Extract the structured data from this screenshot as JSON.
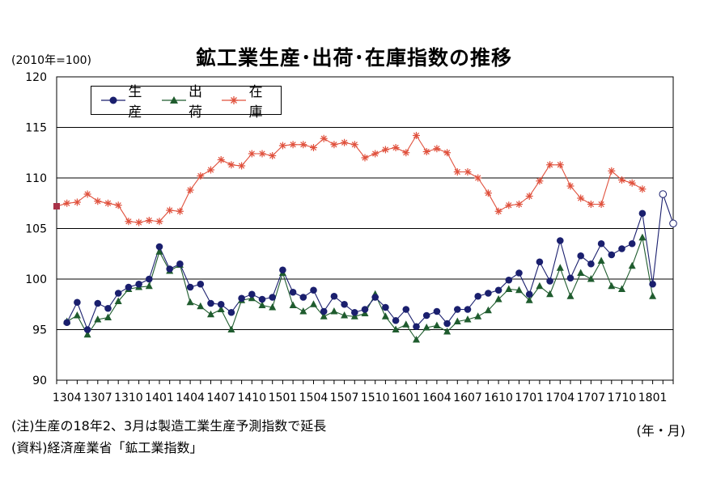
{
  "title": "鉱工業生産･出荷･在庫指数の推移",
  "unit_label": "(2010年=100)",
  "x_unit_label": "(年・月)",
  "note1": "(注)生産の18年2、3月は製造工業生産予測指数で延長",
  "note2": "(資料)経済産業省「鉱工業指数」",
  "colors": {
    "production": "#1a1f6e",
    "shipments": "#1f5c2e",
    "inventory": "#e0503c",
    "inventory_start": "#a83248"
  },
  "chart_data": {
    "type": "line",
    "title": "鉱工業生産･出荷･在庫指数の推移",
    "ylabel": "(2010年=100)",
    "xlabel": "(年・月)",
    "ylim": [
      90,
      120
    ],
    "yticks": [
      90,
      95,
      100,
      105,
      110,
      115,
      120
    ],
    "grid": true,
    "legend_position": "top-left",
    "x": [
      "1303",
      "1304",
      "1305",
      "1306",
      "1307",
      "1308",
      "1309",
      "1310",
      "1311",
      "1312",
      "1401",
      "1402",
      "1403",
      "1404",
      "1405",
      "1406",
      "1407",
      "1408",
      "1409",
      "1410",
      "1411",
      "1412",
      "1501",
      "1502",
      "1503",
      "1504",
      "1505",
      "1506",
      "1507",
      "1508",
      "1509",
      "1510",
      "1511",
      "1512",
      "1601",
      "1602",
      "1603",
      "1604",
      "1605",
      "1606",
      "1607",
      "1608",
      "1609",
      "1610",
      "1611",
      "1612",
      "1701",
      "1702",
      "1703",
      "1704",
      "1705",
      "1706",
      "1707",
      "1708",
      "1709",
      "1710",
      "1711",
      "1712",
      "1801",
      "1802",
      "1803"
    ],
    "x_tick_labels": [
      "1304",
      "1307",
      "1310",
      "1401",
      "1404",
      "1407",
      "1410",
      "1501",
      "1504",
      "1507",
      "1510",
      "1601",
      "1604",
      "1607",
      "1610",
      "1701",
      "1704",
      "1707",
      "1710",
      "1801"
    ],
    "series": [
      {
        "name": "生産",
        "marker": "circle",
        "values": [
          null,
          95.7,
          97.7,
          95.0,
          97.6,
          97.1,
          98.6,
          99.2,
          99.5,
          100.0,
          103.2,
          101.0,
          101.5,
          99.2,
          99.5,
          97.6,
          97.5,
          96.7,
          98.1,
          98.5,
          98.0,
          98.2,
          100.9,
          98.7,
          98.2,
          98.9,
          96.8,
          98.3,
          97.5,
          96.7,
          97.0,
          98.2,
          97.2,
          95.9,
          97.0,
          95.3,
          96.4,
          96.8,
          95.6,
          97.0,
          97.0,
          98.3,
          98.6,
          98.9,
          99.9,
          100.6,
          98.5,
          101.7,
          99.8,
          103.8,
          100.1,
          102.3,
          101.5,
          103.5,
          102.4,
          103.0,
          103.5,
          106.5,
          99.5,
          108.4,
          105.5
        ]
      },
      {
        "name": "出荷",
        "marker": "triangle",
        "values": [
          null,
          95.8,
          96.4,
          94.5,
          96.0,
          96.2,
          97.8,
          99.0,
          99.2,
          99.3,
          102.7,
          100.8,
          101.4,
          97.7,
          97.3,
          96.5,
          97.0,
          95.0,
          97.9,
          98.1,
          97.4,
          97.2,
          100.6,
          97.4,
          96.8,
          97.5,
          96.3,
          96.8,
          96.4,
          96.3,
          96.6,
          98.5,
          96.3,
          95.0,
          95.5,
          94.0,
          95.2,
          95.4,
          94.8,
          95.8,
          96.0,
          96.3,
          96.9,
          98.0,
          99.0,
          98.9,
          97.9,
          99.3,
          98.5,
          101.1,
          98.3,
          100.6,
          100.0,
          101.8,
          99.3,
          99.0,
          101.3,
          104.1,
          98.3,
          null,
          null
        ]
      },
      {
        "name": "在庫",
        "marker": "asterisk",
        "values": [
          107.2,
          107.5,
          107.6,
          108.4,
          107.7,
          107.5,
          107.3,
          105.7,
          105.6,
          105.8,
          105.7,
          106.8,
          106.7,
          108.8,
          110.2,
          110.8,
          111.8,
          111.3,
          111.2,
          112.4,
          112.4,
          112.2,
          113.2,
          113.3,
          113.3,
          113.0,
          113.9,
          113.3,
          113.5,
          113.3,
          112.0,
          112.4,
          112.8,
          113.0,
          112.5,
          114.2,
          112.6,
          112.9,
          112.5,
          110.6,
          110.6,
          110.0,
          108.5,
          106.7,
          107.3,
          107.4,
          108.2,
          109.7,
          111.3,
          111.3,
          109.2,
          108.0,
          107.4,
          107.4,
          110.7,
          109.8,
          109.5,
          108.9,
          null,
          null,
          null
        ]
      }
    ]
  }
}
